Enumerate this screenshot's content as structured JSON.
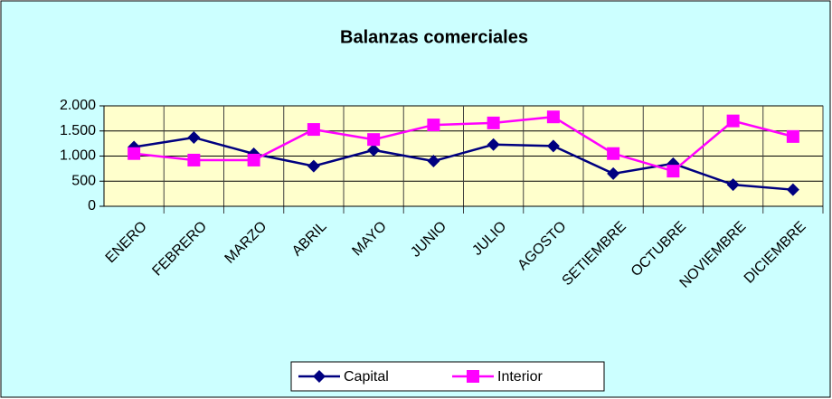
{
  "chart_data": {
    "type": "line",
    "title": "Balanzas comerciales",
    "categories": [
      "ENERO",
      "FEBRERO",
      "MARZO",
      "ABRIL",
      "MAYO",
      "JUNIO",
      "JULIO",
      "AGOSTO",
      "SETIEMBRE",
      "OCTUBRE",
      "NOVIEMBRE",
      "DICIEMBRE"
    ],
    "series": [
      {
        "name": "Capital",
        "color": "#000080",
        "marker": "diamond",
        "values": [
          1180,
          1370,
          1045,
          800,
          1120,
          900,
          1230,
          1200,
          650,
          850,
          430,
          330
        ]
      },
      {
        "name": "Interior",
        "color": "#ff00ff",
        "marker": "square",
        "values": [
          1050,
          920,
          920,
          1530,
          1330,
          1620,
          1660,
          1780,
          1050,
          700,
          1700,
          1390
        ]
      }
    ],
    "ylim": [
      0,
      2000
    ],
    "yticks": [
      0,
      500,
      {
        "value": 1000,
        "label": "1.000"
      },
      {
        "value": 1500,
        "label": "1.500"
      },
      {
        "value": 2000,
        "label": "2.000"
      }
    ],
    "grid": true,
    "legend": "bottom"
  }
}
